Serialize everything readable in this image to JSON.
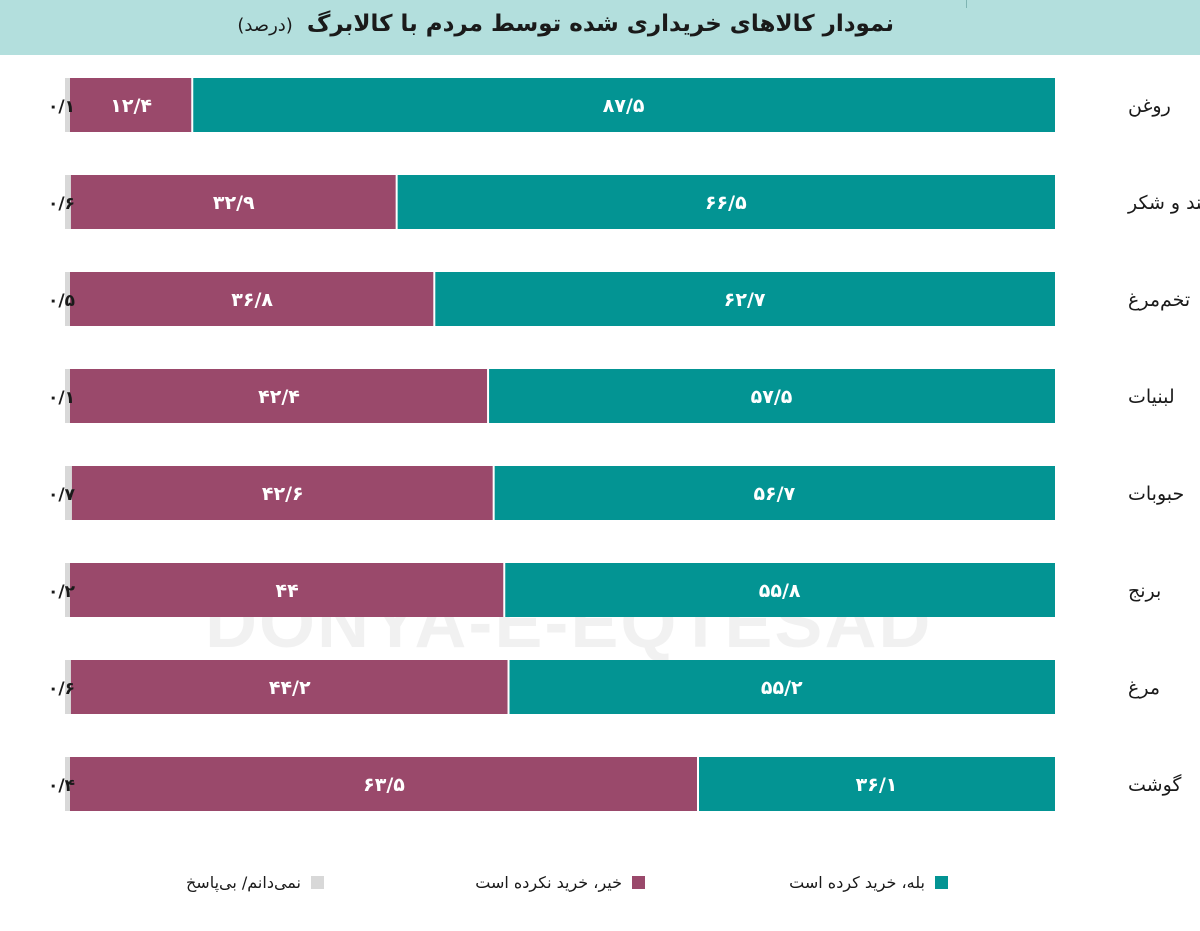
{
  "title": {
    "main": "نمودار کالاهای خریداری شده توسط مردم با کالابرگ",
    "unit": "(درصد)"
  },
  "watermark": "DONYA-E-EQTESAD",
  "colors": {
    "yes": "#039493",
    "no": "#9a496b",
    "no_response": "#d8d8d8",
    "title_bg": "#b3dfdd"
  },
  "legend": {
    "yes": "بله، خرید کرده است",
    "no": "خیر، خرید نکرده است",
    "no_response": "نمی‌دانم/ بی‌پاسخ"
  },
  "chart_data": {
    "type": "bar",
    "orientation": "horizontal",
    "stacked": true,
    "percent_scale": [
      0,
      100
    ],
    "categories": [
      "روغن",
      "قند و شکر",
      "تخم‌مرغ",
      "لبنیات",
      "حبوبات",
      "برنج",
      "مرغ",
      "گوشت"
    ],
    "series": [
      {
        "key": "yes",
        "name": "بله، خرید کرده است",
        "values": [
          87.5,
          66.5,
          62.7,
          57.5,
          56.7,
          55.8,
          55.2,
          36.1
        ],
        "labels": [
          "۸۷/۵",
          "۶۶/۵",
          "۶۲/۷",
          "۵۷/۵",
          "۵۶/۷",
          "۵۵/۸",
          "۵۵/۲",
          "۳۶/۱"
        ]
      },
      {
        "key": "no",
        "name": "خیر، خرید نکرده است",
        "values": [
          12.4,
          32.9,
          36.8,
          42.4,
          42.6,
          44,
          44.2,
          63.5
        ],
        "labels": [
          "۱۲/۴",
          "۳۲/۹",
          "۳۶/۸",
          "۴۲/۴",
          "۴۲/۶",
          "۴۴",
          "۴۴/۲",
          "۶۳/۵"
        ]
      },
      {
        "key": "no_response",
        "name": "نمی‌دانم/ بی‌پاسخ",
        "values": [
          0.1,
          0.6,
          0.5,
          0.1,
          0.7,
          0.2,
          0.6,
          0.4
        ],
        "labels": [
          "۰/۱",
          "۰/۶",
          "۰/۵",
          "۰/۱",
          "۰/۷",
          "۰/۲",
          "۰/۶",
          "۰/۴"
        ]
      }
    ]
  }
}
